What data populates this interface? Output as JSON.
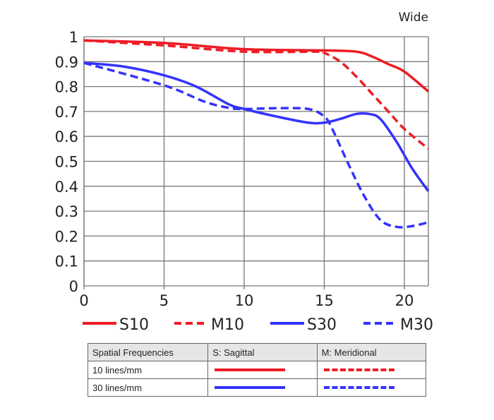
{
  "chart_data": {
    "type": "line",
    "title": "Wide",
    "xlabel": "",
    "ylabel": "",
    "xlim": [
      0,
      21.5
    ],
    "ylim": [
      0,
      1
    ],
    "x_ticks": [
      "0",
      "5",
      "10",
      "15",
      "20"
    ],
    "y_ticks": [
      "0",
      "0.1",
      "0.2",
      "0.3",
      "0.4",
      "0.5",
      "0.6",
      "0.7",
      "0.8",
      "0.9",
      "1"
    ],
    "grid": true,
    "legend_position": "bottom",
    "series": [
      {
        "name": "S10",
        "color": "#ee1c25",
        "dashed": false,
        "x": [
          0,
          5,
          10,
          15,
          17,
          18,
          19,
          20,
          21.5
        ],
        "y": [
          0.985,
          0.975,
          0.95,
          0.945,
          0.94,
          0.92,
          0.89,
          0.86,
          0.78
        ]
      },
      {
        "name": "M10",
        "color": "#ee1c25",
        "dashed": true,
        "x": [
          0,
          5,
          10,
          14.5,
          15,
          16,
          17,
          18,
          19,
          20,
          21.5
        ],
        "y": [
          0.985,
          0.965,
          0.94,
          0.94,
          0.935,
          0.9,
          0.84,
          0.77,
          0.7,
          0.63,
          0.55
        ]
      },
      {
        "name": "S30",
        "color": "#3333ff",
        "dashed": false,
        "x": [
          0,
          2.5,
          5,
          7,
          9,
          10,
          12,
          14,
          15,
          16,
          17,
          17.8,
          18.5,
          19.5,
          20.5,
          21.5
        ],
        "y": [
          0.895,
          0.88,
          0.845,
          0.8,
          0.73,
          0.71,
          0.68,
          0.655,
          0.655,
          0.67,
          0.69,
          0.69,
          0.67,
          0.58,
          0.47,
          0.38
        ]
      },
      {
        "name": "M30",
        "color": "#3333ff",
        "dashed": true,
        "x": [
          0,
          5,
          7.5,
          9,
          10,
          12,
          14,
          15,
          15.5,
          16.5,
          17.5,
          18.5,
          19.5,
          20.5,
          21.5
        ],
        "y": [
          0.895,
          0.805,
          0.74,
          0.715,
          0.71,
          0.713,
          0.71,
          0.68,
          0.63,
          0.49,
          0.36,
          0.265,
          0.237,
          0.24,
          0.255
        ]
      }
    ]
  },
  "table": {
    "headers": [
      "Spatial Frequencies",
      "S: Sagittal",
      "M: Meridional"
    ],
    "rows": [
      {
        "label": "10 lines/mm",
        "color": "#ee1c25"
      },
      {
        "label": "30 lines/mm",
        "color": "#3333ff"
      }
    ]
  }
}
